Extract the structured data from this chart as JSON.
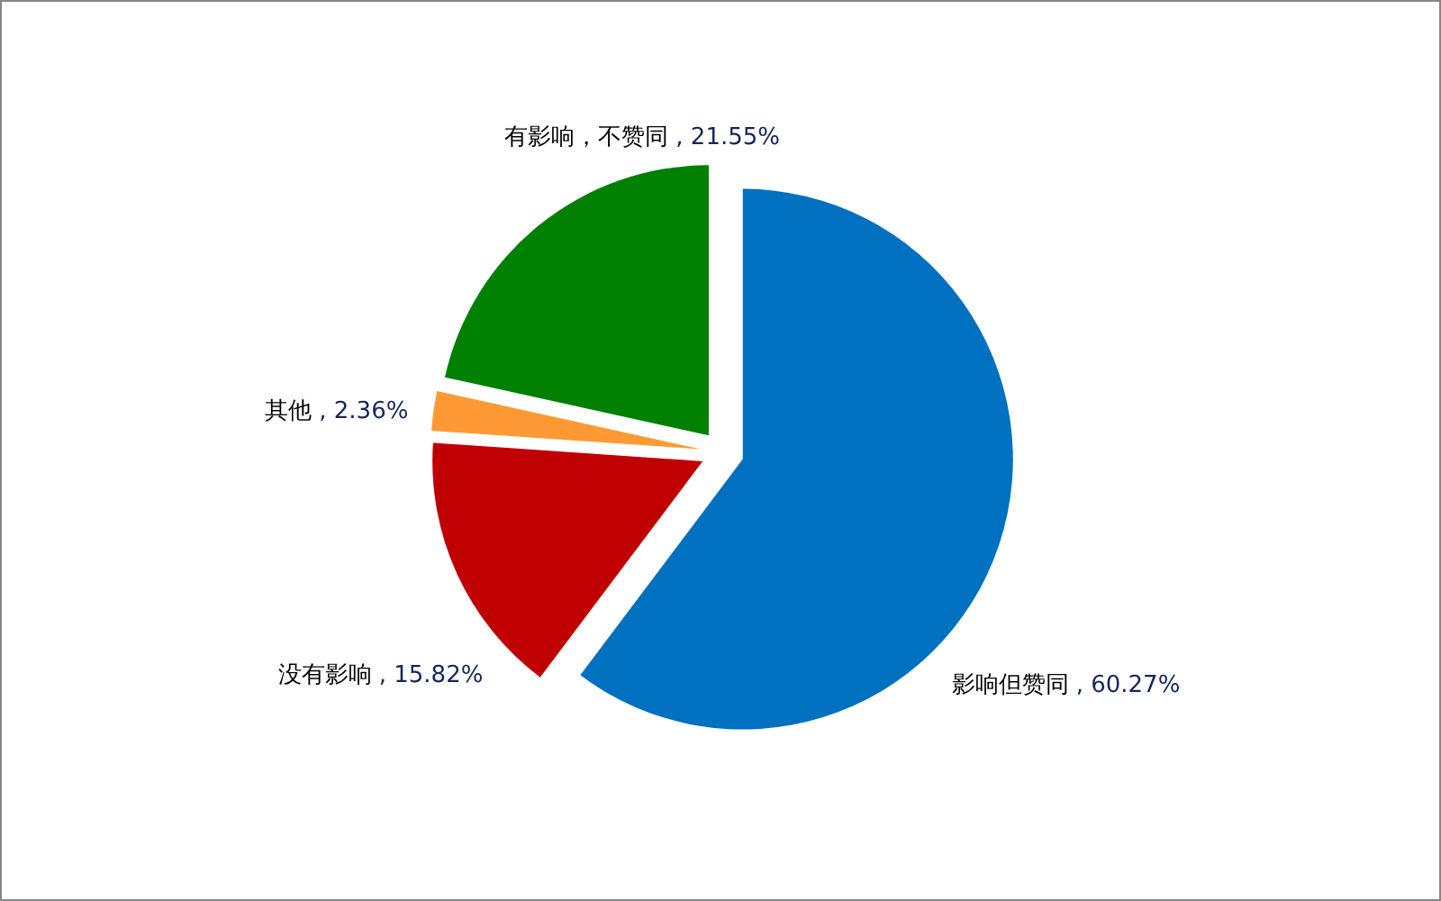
{
  "chart_data": {
    "type": "pie",
    "categories": [
      "影响但赞同",
      "没有影响",
      "其他",
      "有影响，不赞同"
    ],
    "values": [
      60.27,
      15.82,
      2.36,
      21.55
    ],
    "colors": [
      "#0070c0",
      "#c00000",
      "#ff9933",
      "#008000"
    ],
    "value_labels": [
      ", 60.27%",
      ", 15.82%",
      ", 2.36%",
      ", 21.55%"
    ]
  }
}
